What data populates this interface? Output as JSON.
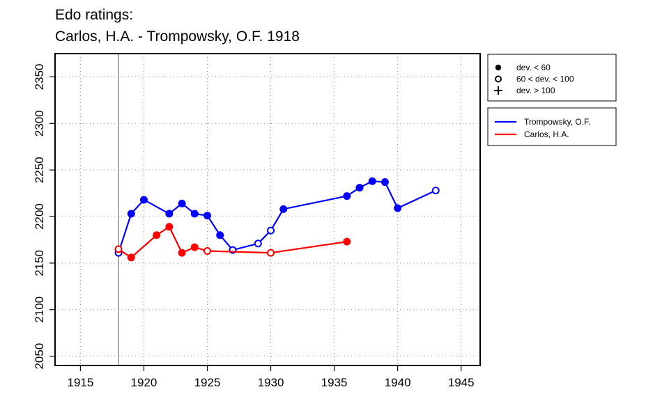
{
  "title_line1": "Edo ratings:",
  "title_line2": "Carlos, H.A. - Trompowsky, O.F. 1918",
  "chart_data": {
    "type": "line",
    "title": "Edo ratings: Carlos, H.A. - Trompowsky, O.F. 1918",
    "xlabel": "",
    "ylabel": "",
    "xlim": [
      1913,
      1946.5
    ],
    "ylim": [
      2040,
      2375
    ],
    "x_ticks": [
      1915,
      1920,
      1925,
      1930,
      1935,
      1940,
      1945
    ],
    "y_ticks": [
      2050,
      2100,
      2150,
      2200,
      2250,
      2300,
      2350
    ],
    "grid": "dotted",
    "reference_line_x": 1918,
    "series": [
      {
        "name": "Trompowsky, O.F.",
        "color": "#0000ff",
        "points": [
          {
            "x": 1918,
            "y": 2161,
            "marker": "open"
          },
          {
            "x": 1919,
            "y": 2203,
            "marker": "filled"
          },
          {
            "x": 1920,
            "y": 2218,
            "marker": "filled"
          },
          {
            "x": 1922,
            "y": 2203,
            "marker": "filled"
          },
          {
            "x": 1923,
            "y": 2214,
            "marker": "filled"
          },
          {
            "x": 1924,
            "y": 2203,
            "marker": "filled"
          },
          {
            "x": 1925,
            "y": 2201,
            "marker": "filled"
          },
          {
            "x": 1926,
            "y": 2180,
            "marker": "filled"
          },
          {
            "x": 1927,
            "y": 2164,
            "marker": "open"
          },
          {
            "x": 1929,
            "y": 2171,
            "marker": "open"
          },
          {
            "x": 1930,
            "y": 2185,
            "marker": "open"
          },
          {
            "x": 1931,
            "y": 2208,
            "marker": "filled"
          },
          {
            "x": 1936,
            "y": 2222,
            "marker": "filled"
          },
          {
            "x": 1937,
            "y": 2231,
            "marker": "filled"
          },
          {
            "x": 1938,
            "y": 2238,
            "marker": "filled"
          },
          {
            "x": 1939,
            "y": 2237,
            "marker": "filled"
          },
          {
            "x": 1940,
            "y": 2209,
            "marker": "filled"
          },
          {
            "x": 1943,
            "y": 2228,
            "marker": "open"
          }
        ]
      },
      {
        "name": "Carlos, H.A.",
        "color": "#ff0000",
        "points": [
          {
            "x": 1918,
            "y": 2165,
            "marker": "open"
          },
          {
            "x": 1919,
            "y": 2156,
            "marker": "filled"
          },
          {
            "x": 1921,
            "y": 2180,
            "marker": "filled"
          },
          {
            "x": 1922,
            "y": 2189,
            "marker": "filled"
          },
          {
            "x": 1923,
            "y": 2161,
            "marker": "filled"
          },
          {
            "x": 1924,
            "y": 2167,
            "marker": "filled"
          },
          {
            "x": 1925,
            "y": 2163,
            "marker": "open"
          },
          {
            "x": 1930,
            "y": 2161,
            "marker": "open"
          },
          {
            "x": 1936,
            "y": 2173,
            "marker": "filled"
          }
        ]
      }
    ],
    "legend_markers": {
      "placement": "top-right, outside plot",
      "entries": [
        {
          "symbol": "filled",
          "label": "dev. < 60"
        },
        {
          "symbol": "open",
          "label": "60 < dev. < 100"
        },
        {
          "symbol": "plus",
          "label": "dev. > 100"
        }
      ]
    },
    "legend_series": {
      "placement": "right, outside plot",
      "entries": [
        {
          "label": "Trompowsky, O.F.",
          "color": "#0000ff"
        },
        {
          "label": "Carlos, H.A.",
          "color": "#ff0000"
        }
      ]
    }
  }
}
